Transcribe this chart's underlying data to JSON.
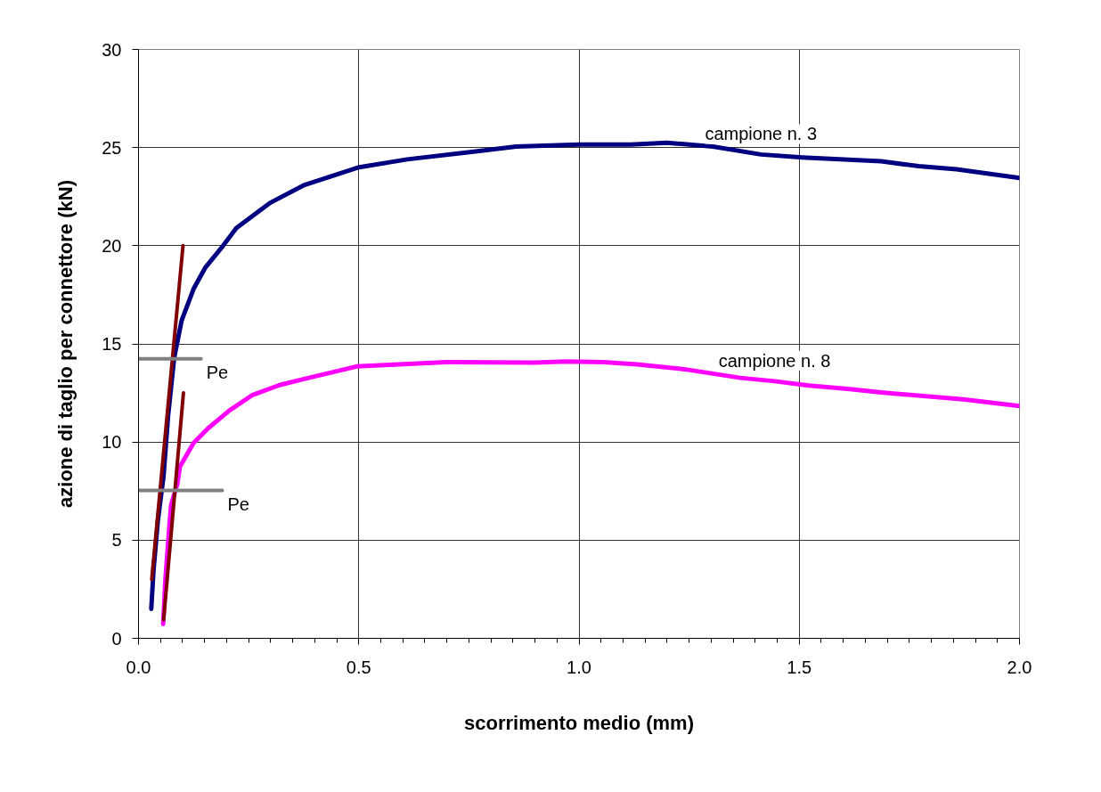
{
  "chart_data": {
    "type": "line",
    "xlabel": "scorrimento medio (mm)",
    "ylabel": "azione di taglio per connettore (kN)",
    "xlim": [
      0,
      2.0
    ],
    "ylim": [
      0,
      30
    ],
    "xticks": [
      {
        "value": 0,
        "label": "0.0"
      },
      {
        "value": 0.5,
        "label": "0.5"
      },
      {
        "value": 1.0,
        "label": "1.0"
      },
      {
        "value": 1.5,
        "label": "1.5"
      },
      {
        "value": 2.0,
        "label": "2.0"
      }
    ],
    "yticks": [
      0,
      5,
      10,
      15,
      20,
      25,
      30
    ],
    "grid": true,
    "line_style": "solid",
    "series": [
      {
        "name": "campione n. 3",
        "color": "#000080",
        "x": [
          0.029,
          0.034,
          0.044,
          0.057,
          0.067,
          0.081,
          0.098,
          0.125,
          0.152,
          0.192,
          0.222,
          0.3,
          0.377,
          0.501,
          0.61,
          0.765,
          0.857,
          1.0,
          1.118,
          1.199,
          1.304,
          1.413,
          1.507,
          1.686,
          1.771,
          1.857,
          2.0
        ],
        "values": [
          1.5,
          3.45,
          6.0,
          8.3,
          11.3,
          14.3,
          16.2,
          17.8,
          18.9,
          20.0,
          20.9,
          22.2,
          23.1,
          24.0,
          24.4,
          24.8,
          25.05,
          25.15,
          25.15,
          25.25,
          25.05,
          24.65,
          24.5,
          24.3,
          24.05,
          23.9,
          23.45
        ]
      },
      {
        "name": "campione n. 8",
        "color": "#ff00ff",
        "x": [
          0.056,
          0.061,
          0.071,
          0.074,
          0.088,
          0.094,
          0.125,
          0.158,
          0.206,
          0.259,
          0.32,
          0.374,
          0.495,
          0.698,
          0.9,
          0.97,
          1.056,
          1.132,
          1.242,
          1.366,
          1.444,
          1.522,
          1.615,
          1.686,
          1.872,
          2.0
        ],
        "values": [
          0.73,
          3.0,
          6.0,
          6.8,
          7.85,
          8.75,
          9.95,
          10.7,
          11.6,
          12.4,
          12.9,
          13.2,
          13.85,
          14.07,
          14.05,
          14.1,
          14.07,
          13.96,
          13.7,
          13.27,
          13.1,
          12.88,
          12.7,
          12.53,
          12.17,
          11.83
        ]
      },
      {
        "color": "#800000",
        "x": [
          0.03,
          0.101
        ],
        "values": [
          3.0,
          20.0
        ]
      },
      {
        "color": "#800000",
        "x": [
          0.057,
          0.102
        ],
        "values": [
          0.95,
          12.5
        ]
      },
      {
        "name": "Pe",
        "color": "#808080",
        "x": [
          0,
          0.142
        ],
        "values": [
          14.24,
          14.24
        ]
      },
      {
        "name": "Pe",
        "color": "#808080",
        "x": [
          0,
          0.19
        ],
        "values": [
          7.53,
          7.53
        ]
      }
    ]
  }
}
